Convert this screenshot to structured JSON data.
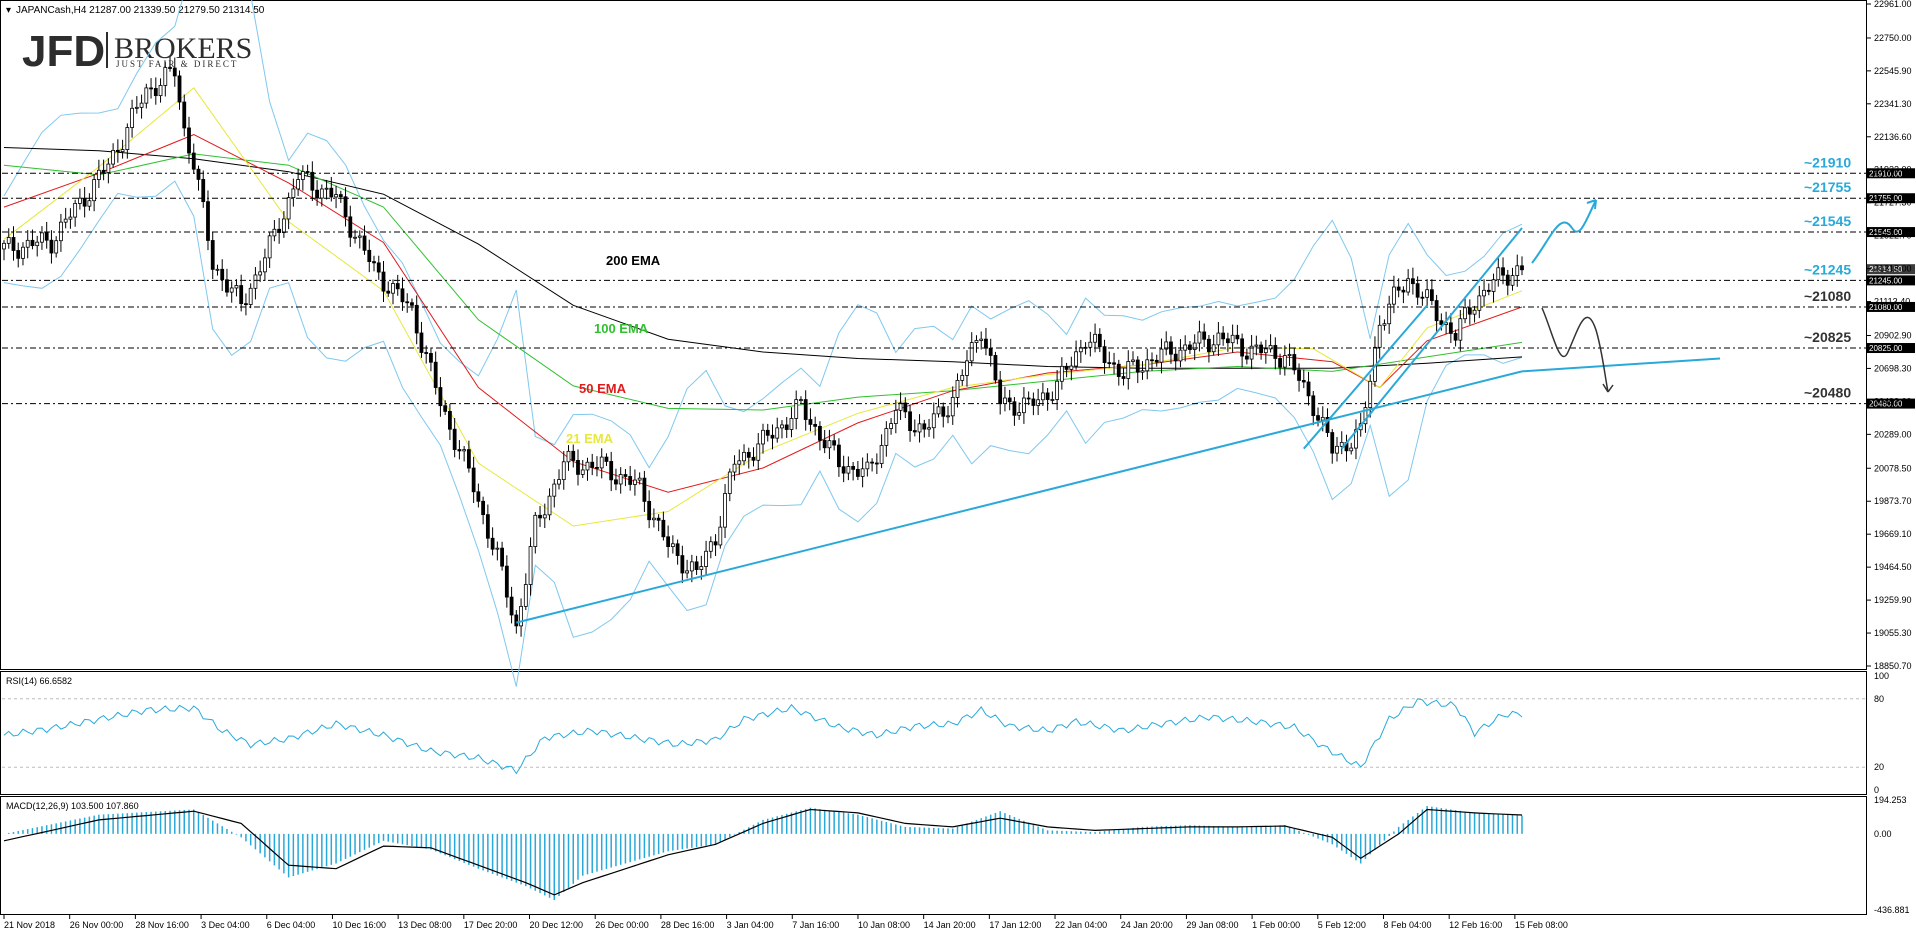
{
  "header": {
    "symbol_line": "JAPANCash,H4  21287.00 21339.50 21279.50 21314.50"
  },
  "logo": {
    "main": "JFD",
    "brokers": "BROKERS",
    "tagline": "JUST FAIR & DIRECT"
  },
  "colors": {
    "accent": "#29a9d9",
    "candle": "#000000",
    "bollinger": "#7fc8ee",
    "ema21": "#e7e73c",
    "ema50": "#e01b1b",
    "ema100": "#30c030",
    "ema200": "#000000",
    "rsi": "#29a9d9",
    "macd_hist": "#29a9d9",
    "macd_signal": "#000000"
  },
  "chart_data": [
    {
      "type": "candlestick",
      "instrument": "JAPANCash,H4",
      "ohlc_last": {
        "open": 21287.0,
        "high": 21339.5,
        "low": 21279.5,
        "close": 21314.5
      },
      "ylim": [
        18850.7,
        22961.0
      ],
      "y_ticks": [
        "22961.00",
        "22750.00",
        "22545.90",
        "22341.30",
        "22136.60",
        "21932.00",
        "21727.30",
        "21522.70",
        "21318.00",
        "21113.40",
        "20902.90",
        "20698.30",
        "20493.60",
        "20289.00",
        "20078.50",
        "19873.70",
        "19669.10",
        "19464.50",
        "19259.90",
        "19055.30",
        "18850.70"
      ],
      "x_ticks": [
        "21 Nov 2018",
        "26 Nov 00:00",
        "28 Nov 16:00",
        "3 Dec 04:00",
        "6 Dec 04:00",
        "10 Dec 16:00",
        "13 Dec 08:00",
        "17 Dec 20:00",
        "20 Dec 12:00",
        "26 Dec 00:00",
        "28 Dec 16:00",
        "3 Jan 04:00",
        "7 Jan 16:00",
        "10 Jan 08:00",
        "14 Jan 20:00",
        "17 Jan 12:00",
        "22 Jan 04:00",
        "24 Jan 20:00",
        "29 Jan 08:00",
        "1 Feb 00:00",
        "5 Feb 12:00",
        "8 Feb 04:00",
        "12 Feb 16:00",
        "15 Feb 08:00"
      ],
      "price_path": [
        [
          0,
          21440
        ],
        [
          10,
          21490
        ],
        [
          22,
          21960
        ],
        [
          30,
          22420
        ],
        [
          36,
          22540
        ],
        [
          38,
          22180
        ],
        [
          40,
          21980
        ],
        [
          44,
          21350
        ],
        [
          50,
          21090
        ],
        [
          56,
          21450
        ],
        [
          62,
          21890
        ],
        [
          70,
          21760
        ],
        [
          78,
          21310
        ],
        [
          86,
          21060
        ],
        [
          92,
          20480
        ],
        [
          98,
          20050
        ],
        [
          104,
          19520
        ],
        [
          108,
          19090
        ],
        [
          112,
          19710
        ],
        [
          118,
          20110
        ],
        [
          126,
          20090
        ],
        [
          134,
          19960
        ],
        [
          140,
          19590
        ],
        [
          146,
          19420
        ],
        [
          150,
          19660
        ],
        [
          154,
          20110
        ],
        [
          160,
          20240
        ],
        [
          168,
          20460
        ],
        [
          176,
          20110
        ],
        [
          182,
          20040
        ],
        [
          188,
          20440
        ],
        [
          194,
          20310
        ],
        [
          200,
          20510
        ],
        [
          206,
          20960
        ],
        [
          210,
          20490
        ],
        [
          216,
          20460
        ],
        [
          222,
          20590
        ],
        [
          228,
          20890
        ],
        [
          236,
          20660
        ],
        [
          242,
          20760
        ],
        [
          248,
          20820
        ],
        [
          256,
          20890
        ],
        [
          262,
          20820
        ],
        [
          270,
          20780
        ],
        [
          276,
          20480
        ],
        [
          280,
          20190
        ],
        [
          286,
          20290
        ],
        [
          290,
          20990
        ],
        [
          296,
          21260
        ],
        [
          302,
          21040
        ],
        [
          306,
          20900
        ],
        [
          310,
          21120
        ],
        [
          316,
          21280
        ],
        [
          320,
          21314.5
        ]
      ],
      "series": [
        {
          "name": "200 EMA",
          "values": [
            [
              0,
              22070
            ],
            [
              20,
              22050
            ],
            [
              40,
              22000
            ],
            [
              60,
              21920
            ],
            [
              80,
              21780
            ],
            [
              100,
              21470
            ],
            [
              120,
              21090
            ],
            [
              140,
              20880
            ],
            [
              160,
              20800
            ],
            [
              180,
              20760
            ],
            [
              200,
              20740
            ],
            [
              220,
              20710
            ],
            [
              240,
              20700
            ],
            [
              260,
              20700
            ],
            [
              280,
              20700
            ],
            [
              300,
              20730
            ],
            [
              320,
              20770
            ]
          ]
        },
        {
          "name": "100 EMA",
          "values": [
            [
              0,
              21960
            ],
            [
              20,
              21900
            ],
            [
              40,
              22030
            ],
            [
              60,
              21960
            ],
            [
              80,
              21700
            ],
            [
              100,
              21000
            ],
            [
              120,
              20590
            ],
            [
              140,
              20450
            ],
            [
              160,
              20440
            ],
            [
              180,
              20520
            ],
            [
              200,
              20560
            ],
            [
              220,
              20620
            ],
            [
              240,
              20680
            ],
            [
              260,
              20710
            ],
            [
              280,
              20680
            ],
            [
              300,
              20770
            ],
            [
              320,
              20860
            ]
          ]
        },
        {
          "name": "50 EMA",
          "values": [
            [
              0,
              21700
            ],
            [
              20,
              21910
            ],
            [
              40,
              22150
            ],
            [
              60,
              21850
            ],
            [
              80,
              21480
            ],
            [
              100,
              20580
            ],
            [
              120,
              20120
            ],
            [
              140,
              19930
            ],
            [
              160,
              20080
            ],
            [
              180,
              20360
            ],
            [
              200,
              20560
            ],
            [
              220,
              20670
            ],
            [
              240,
              20720
            ],
            [
              260,
              20800
            ],
            [
              280,
              20740
            ],
            [
              290,
              20580
            ],
            [
              300,
              20870
            ],
            [
              320,
              21080
            ]
          ]
        },
        {
          "name": "21 EMA",
          "values": [
            [
              0,
              21500
            ],
            [
              20,
              21950
            ],
            [
              40,
              22440
            ],
            [
              60,
              21610
            ],
            [
              80,
              21180
            ],
            [
              100,
              20110
            ],
            [
              120,
              19720
            ],
            [
              140,
              19810
            ],
            [
              160,
              20180
            ],
            [
              180,
              20420
            ],
            [
              200,
              20580
            ],
            [
              220,
              20660
            ],
            [
              240,
              20720
            ],
            [
              260,
              20830
            ],
            [
              276,
              20820
            ],
            [
              290,
              20580
            ],
            [
              300,
              20950
            ],
            [
              320,
              21180
            ]
          ]
        }
      ],
      "annotations": [
        {
          "text": "200 EMA",
          "color": "#000000"
        },
        {
          "text": "100 EMA",
          "color": "#30c030"
        },
        {
          "text": "50 EMA",
          "color": "#e01b1b"
        },
        {
          "text": "21 EMA",
          "color": "#e7e73c"
        }
      ],
      "levels": [
        {
          "label": "~21910",
          "tag": "21910.00",
          "value": 21910
        },
        {
          "label": "~21755",
          "tag": "21755.00",
          "value": 21755
        },
        {
          "label": "~21545",
          "tag": "21545.00",
          "value": 21545
        },
        {
          "label": "~21245",
          "tag": "21245.00",
          "value": 21245
        },
        {
          "label": "~21080",
          "tag": "21080.00",
          "value": 21080
        },
        {
          "label": "~20825",
          "tag": "20825.00",
          "value": 20825
        },
        {
          "label": "~20480",
          "tag": "20480.00",
          "value": 20480
        }
      ],
      "current_price_tag": "21314.50",
      "trendlines": [
        {
          "from": [
            108,
            19120
          ],
          "to": [
            320,
            20680
          ]
        },
        {
          "from": [
            274,
            20200
          ],
          "to": [
            300,
            21090
          ]
        },
        {
          "from": [
            282,
            20200
          ],
          "to": [
            320,
            21570
          ]
        }
      ]
    },
    {
      "type": "line",
      "title": "RSI(14) 66.6582",
      "ylim": [
        0,
        100
      ],
      "y_ticks": [
        "100",
        "80",
        "20",
        "0"
      ],
      "levels": [
        80,
        20
      ],
      "values": [
        [
          0,
          48
        ],
        [
          10,
          54
        ],
        [
          20,
          62
        ],
        [
          30,
          70
        ],
        [
          40,
          72
        ],
        [
          46,
          52
        ],
        [
          52,
          40
        ],
        [
          60,
          45
        ],
        [
          70,
          58
        ],
        [
          80,
          48
        ],
        [
          90,
          34
        ],
        [
          100,
          28
        ],
        [
          108,
          17
        ],
        [
          114,
          46
        ],
        [
          124,
          52
        ],
        [
          134,
          45
        ],
        [
          142,
          40
        ],
        [
          150,
          44
        ],
        [
          156,
          62
        ],
        [
          166,
          72
        ],
        [
          176,
          55
        ],
        [
          184,
          48
        ],
        [
          192,
          56
        ],
        [
          200,
          58
        ],
        [
          206,
          70
        ],
        [
          212,
          56
        ],
        [
          220,
          52
        ],
        [
          226,
          60
        ],
        [
          236,
          52
        ],
        [
          244,
          58
        ],
        [
          254,
          64
        ],
        [
          264,
          60
        ],
        [
          272,
          55
        ],
        [
          278,
          38
        ],
        [
          286,
          20
        ],
        [
          292,
          62
        ],
        [
          298,
          78
        ],
        [
          306,
          74
        ],
        [
          310,
          50
        ],
        [
          316,
          66
        ],
        [
          320,
          67
        ]
      ]
    },
    {
      "type": "bar+line",
      "title": "MACD(12,26,9) 103.500 107.860",
      "ylim": [
        -436.881,
        194.253
      ],
      "y_ticks": [
        "194.253",
        "0.00",
        "-436.881"
      ],
      "histogram": [
        [
          0,
          0
        ],
        [
          20,
          110
        ],
        [
          40,
          140
        ],
        [
          50,
          -20
        ],
        [
          60,
          -250
        ],
        [
          70,
          -170
        ],
        [
          80,
          -40
        ],
        [
          90,
          -90
        ],
        [
          100,
          -200
        ],
        [
          110,
          -300
        ],
        [
          116,
          -380
        ],
        [
          122,
          -240
        ],
        [
          140,
          -100
        ],
        [
          150,
          -60
        ],
        [
          160,
          80
        ],
        [
          170,
          150
        ],
        [
          180,
          110
        ],
        [
          190,
          40
        ],
        [
          200,
          30
        ],
        [
          210,
          130
        ],
        [
          220,
          20
        ],
        [
          230,
          10
        ],
        [
          240,
          40
        ],
        [
          250,
          50
        ],
        [
          260,
          40
        ],
        [
          270,
          50
        ],
        [
          280,
          -60
        ],
        [
          286,
          -170
        ],
        [
          294,
          40
        ],
        [
          300,
          160
        ],
        [
          310,
          120
        ],
        [
          320,
          105
        ]
      ],
      "signal": [
        [
          0,
          -40
        ],
        [
          20,
          80
        ],
        [
          40,
          130
        ],
        [
          50,
          60
        ],
        [
          60,
          -180
        ],
        [
          70,
          -200
        ],
        [
          80,
          -70
        ],
        [
          90,
          -80
        ],
        [
          100,
          -180
        ],
        [
          110,
          -280
        ],
        [
          116,
          -350
        ],
        [
          122,
          -280
        ],
        [
          140,
          -120
        ],
        [
          150,
          -60
        ],
        [
          160,
          60
        ],
        [
          170,
          140
        ],
        [
          180,
          120
        ],
        [
          190,
          60
        ],
        [
          200,
          40
        ],
        [
          210,
          90
        ],
        [
          220,
          40
        ],
        [
          230,
          20
        ],
        [
          240,
          30
        ],
        [
          250,
          40
        ],
        [
          260,
          40
        ],
        [
          270,
          45
        ],
        [
          280,
          -20
        ],
        [
          286,
          -140
        ],
        [
          294,
          0
        ],
        [
          300,
          140
        ],
        [
          310,
          120
        ],
        [
          320,
          108
        ]
      ]
    }
  ]
}
